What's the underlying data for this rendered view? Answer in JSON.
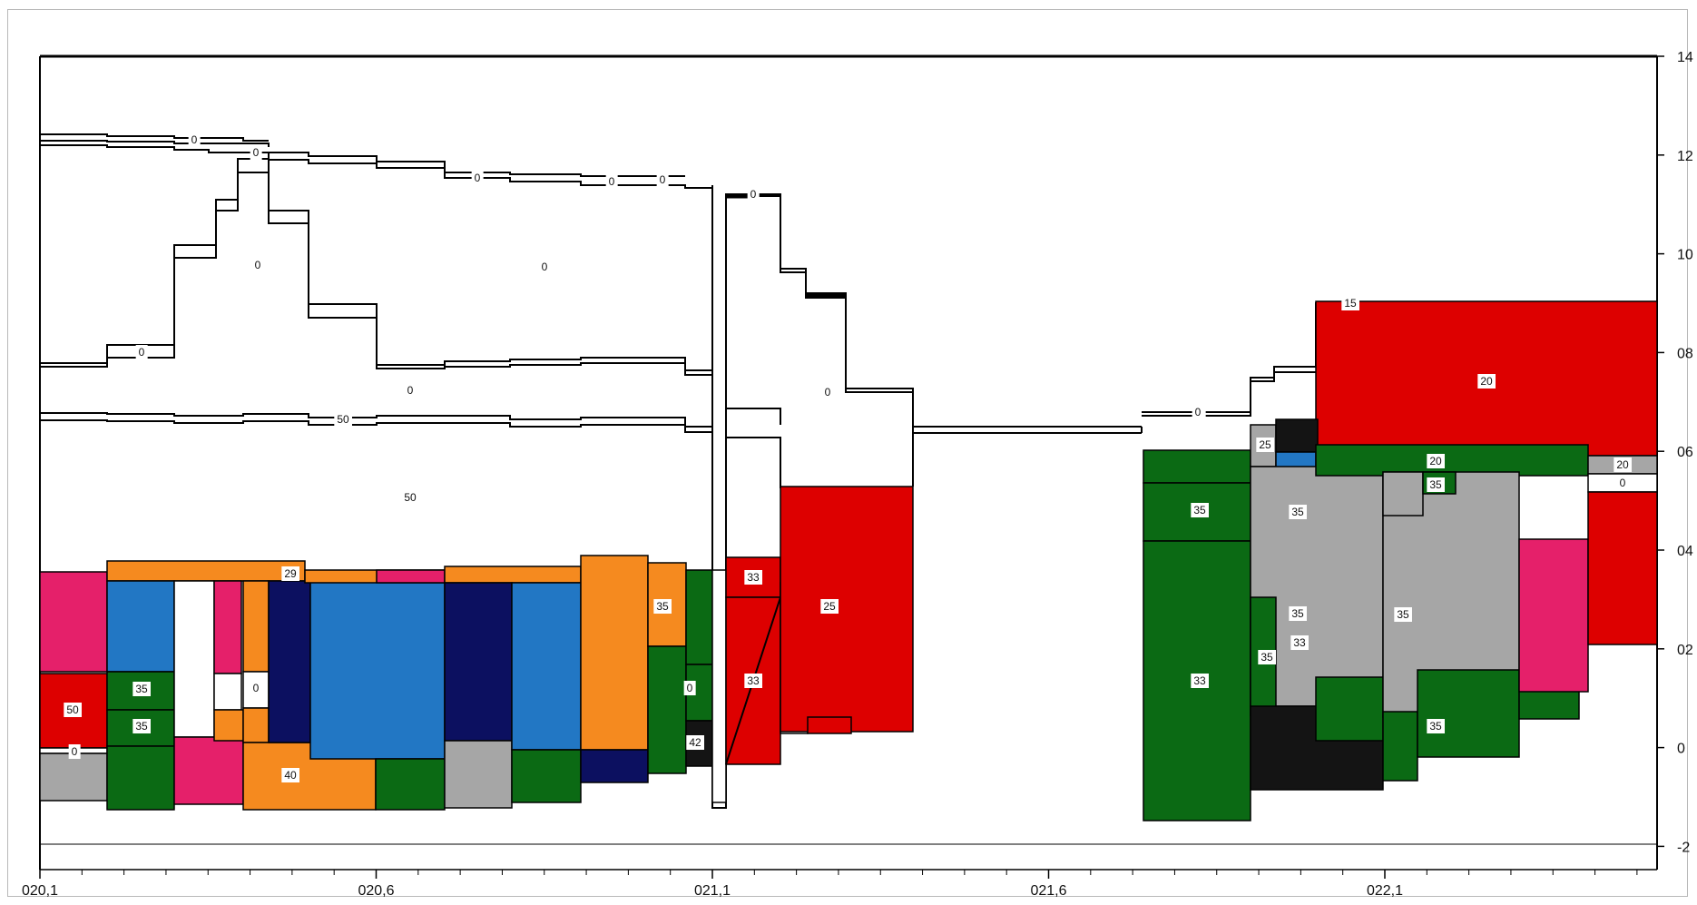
{
  "colors": {
    "red": "#dd0000",
    "green": "#0b6a14",
    "blue": "#2277c4",
    "navy": "#0c1060",
    "orange": "#f58a1f",
    "pink": "#e5206a",
    "gray": "#a6a6a6",
    "black": "#141414",
    "white": "#ffffff"
  },
  "chart_data": {
    "type": "block-profile",
    "x_ticks": [
      "020,1",
      "020,6",
      "021,1",
      "021,6",
      "022,1"
    ],
    "y_ticks": [
      "14",
      "12",
      "10",
      "08",
      "06",
      "04",
      "02",
      "0",
      "-2"
    ],
    "block_labels": [
      "0",
      "0",
      "0",
      "0",
      "0",
      "0",
      "0",
      "0",
      "0",
      "50",
      "0",
      "50",
      "0",
      "0",
      "0",
      "15",
      "20",
      "25",
      "35",
      "20",
      "35",
      "20",
      "0",
      "29",
      "35",
      "0",
      "33",
      "25",
      "50",
      "35",
      "35",
      "0",
      "40",
      "0",
      "33",
      "42",
      "35",
      "35",
      "33",
      "35",
      "33",
      "35",
      "35"
    ]
  }
}
